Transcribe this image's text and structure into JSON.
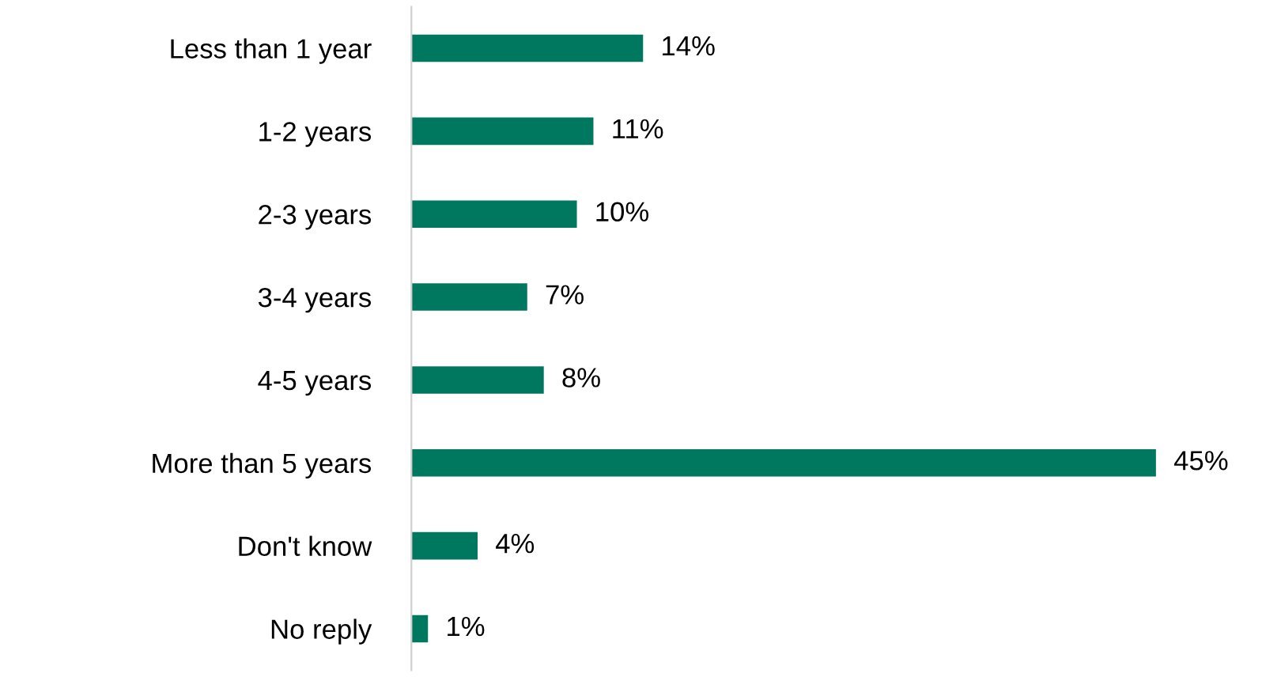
{
  "chart_data": {
    "type": "bar",
    "orientation": "horizontal",
    "categories": [
      "Less than 1 year",
      "1-2 years",
      "2-3 years",
      "3-4 years",
      "4-5 years",
      "More than 5 years",
      "Don't know",
      "No reply"
    ],
    "values": [
      14,
      11,
      10,
      7,
      8,
      45,
      4,
      1
    ],
    "value_labels": [
      "14%",
      "11%",
      "10%",
      "7%",
      "8%",
      "45%",
      "4%",
      "1%"
    ],
    "color": "#00775f",
    "grid": false,
    "legend": false
  }
}
